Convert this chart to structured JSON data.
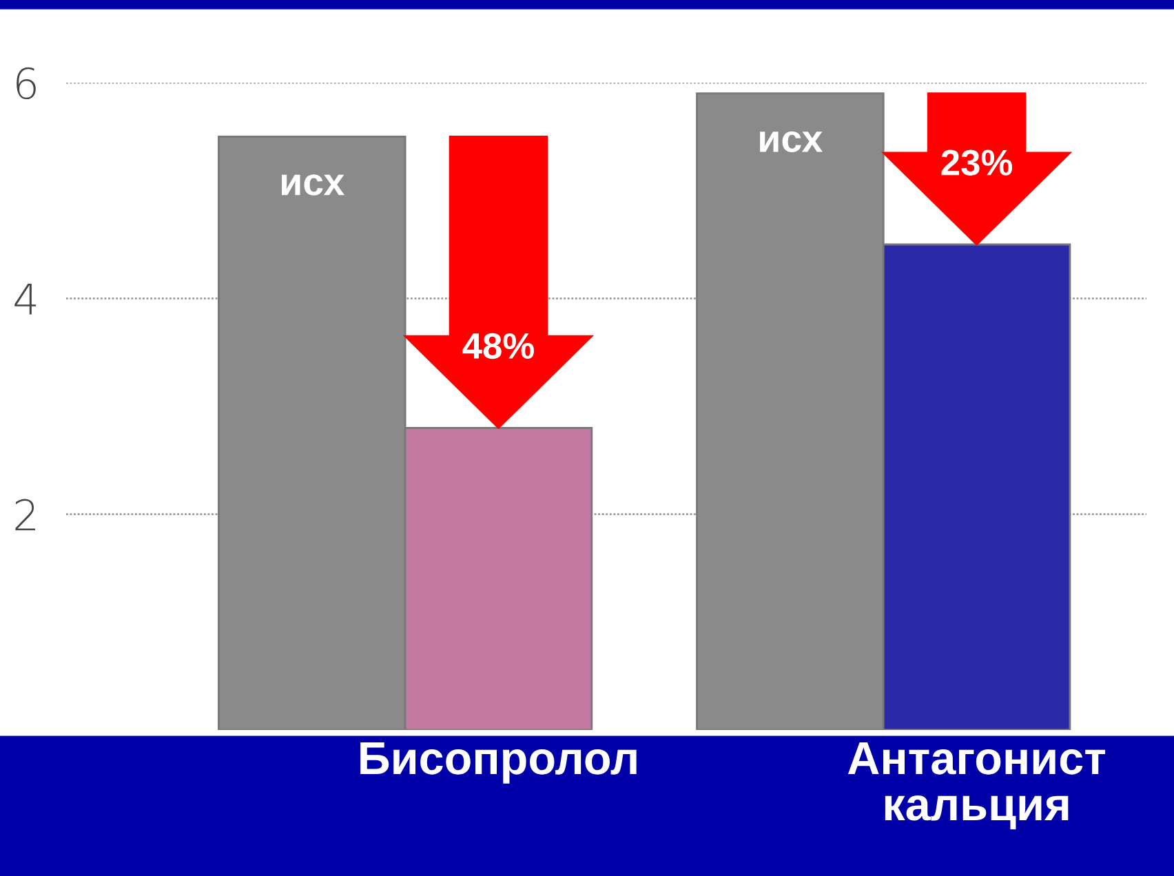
{
  "chart_data": {
    "type": "bar",
    "categories": [
      "Бисопролол",
      "Антагонист кальция"
    ],
    "series": [
      {
        "name": "исх",
        "color": "#8a8a8a",
        "values": [
          5.5,
          5.9
        ]
      },
      {
        "colors": [
          "#c47aa0",
          "#2a2aa8"
        ],
        "values": [
          2.8,
          4.5
        ]
      }
    ],
    "annotations": [
      "48%",
      "23%"
    ],
    "ylim": [
      0,
      6
    ],
    "yticks": [
      2,
      4,
      6
    ],
    "grid": "y",
    "legend": false,
    "tick_labels": "y"
  }
}
